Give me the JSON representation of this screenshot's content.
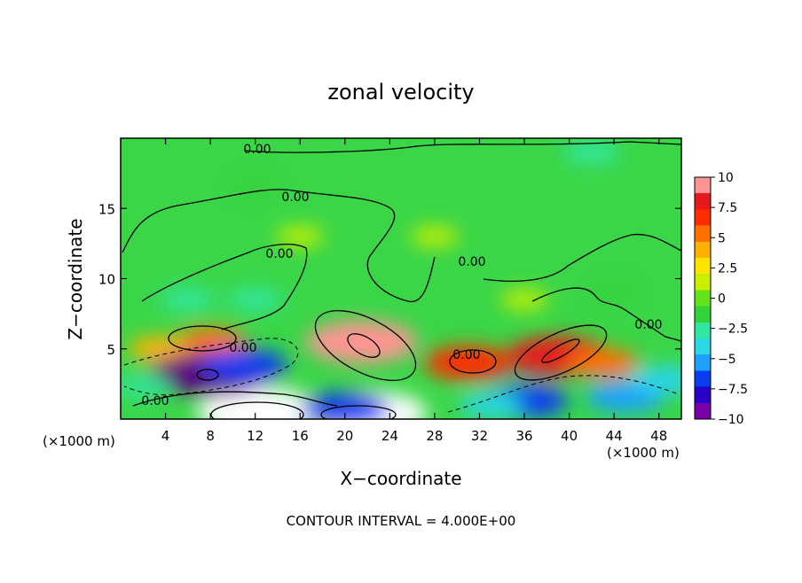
{
  "chart_data": {
    "type": "heatmap",
    "title": "zonal velocity",
    "xlabel": "X−coordinate",
    "ylabel": "Z−coordinate",
    "x_unit_left": "(×1000 m)",
    "x_unit_right": "(×1000 m)",
    "xlim": [
      0,
      50
    ],
    "ylim": [
      0,
      20
    ],
    "x_ticks": [
      4,
      8,
      12,
      16,
      20,
      24,
      28,
      32,
      36,
      40,
      44,
      48
    ],
    "x_tick_labels": [
      "4",
      "8",
      "12",
      "16",
      "20",
      "24",
      "28",
      "32",
      "36",
      "40",
      "44",
      "48"
    ],
    "y_ticks": [
      5,
      10,
      15
    ],
    "y_tick_labels": [
      "5",
      "10",
      "15"
    ],
    "colorbar": {
      "range": [
        -10,
        10
      ],
      "ticks": [
        10,
        7.5,
        5,
        2.5,
        0,
        -2.5,
        -5,
        -7.5,
        -10
      ],
      "tick_labels": [
        "10",
        "7.5",
        "5",
        "2.5",
        "0",
        "−2.5",
        "−5",
        "−7.5",
        "−10"
      ],
      "colors": [
        "#7a00a8",
        "#2a00c8",
        "#0a3cf0",
        "#1fa0ff",
        "#2bd6e6",
        "#33e6a0",
        "#34d23a",
        "#66e21a",
        "#c8f000",
        "#ffe400",
        "#ffb000",
        "#ff7000",
        "#ff2c00",
        "#e61a1a",
        "#ff9494"
      ]
    },
    "contour_interval_label": "CONTOUR INTERVAL = 4.000E+00",
    "contour_labels": [
      "0.00",
      "0.00",
      "0.00",
      "0.00",
      "0.00",
      "0.00",
      "0.00",
      "0.00"
    ],
    "features": [
      {
        "x": 21.5,
        "z": 5.5,
        "value": 10
      },
      {
        "x": 39,
        "z": 4.5,
        "value": 9
      },
      {
        "x": 31,
        "z": 4,
        "value": 7
      },
      {
        "x": 12.5,
        "z": 0.5,
        "value": 12
      },
      {
        "x": 22,
        "z": 0.4,
        "value": 11
      },
      {
        "x": 8,
        "z": 5.5,
        "value": 5
      },
      {
        "x": 3.5,
        "z": 5,
        "value": 4
      },
      {
        "x": 43,
        "z": 4,
        "value": 5
      },
      {
        "x": 8,
        "z": 3.2,
        "value": -11
      },
      {
        "x": 11,
        "z": 3.8,
        "value": -7
      },
      {
        "x": 20,
        "z": 0.7,
        "value": -7
      },
      {
        "x": 36,
        "z": 1.3,
        "value": -7
      },
      {
        "x": 45,
        "z": 1.6,
        "value": -6
      },
      {
        "x": 48.5,
        "z": 2.8,
        "value": -5
      },
      {
        "x": 33,
        "z": 1.0,
        "value": -4
      },
      {
        "x": 42,
        "z": 19.0,
        "value": -3
      },
      {
        "x": 12,
        "z": 16.5,
        "value": -2
      },
      {
        "x": 28,
        "z": 13.0,
        "value": 2
      },
      {
        "x": 16,
        "z": 13.0,
        "value": 2
      },
      {
        "x": 6,
        "z": 8.5,
        "value": -3
      },
      {
        "x": 12,
        "z": 8.5,
        "value": -3
      },
      {
        "x": 2,
        "z": 2.3,
        "value": -3
      },
      {
        "x": 36,
        "z": 8.5,
        "value": 2
      },
      {
        "x": 44,
        "z": 9.0,
        "value": -2
      }
    ]
  }
}
